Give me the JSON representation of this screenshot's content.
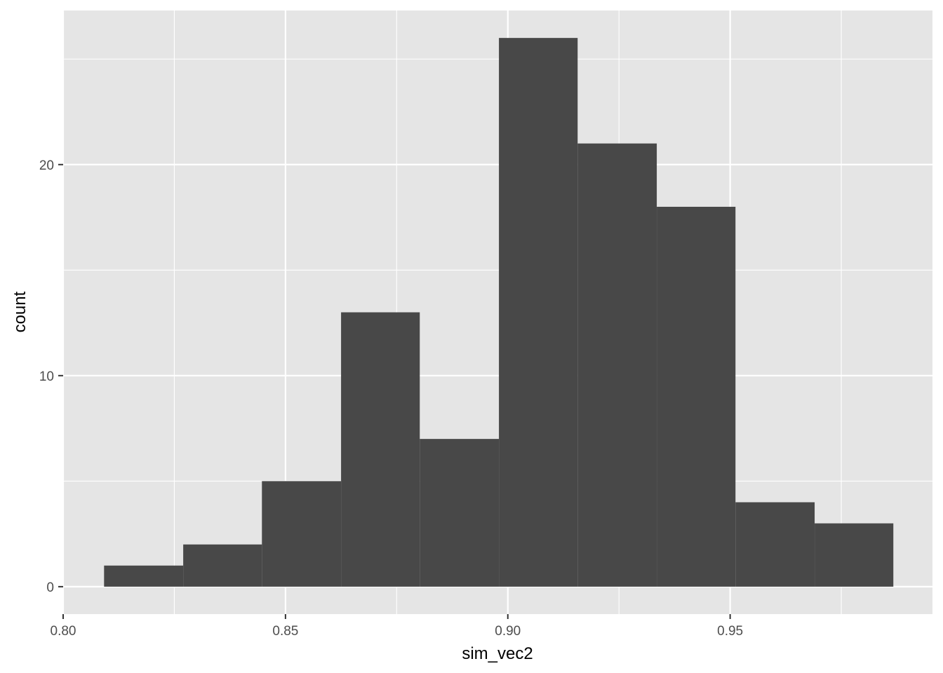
{
  "chart_data": {
    "type": "bar",
    "subtype": "histogram",
    "xlabel": "sim_vec2",
    "ylabel": "count",
    "bins": [
      {
        "start": 0.8092,
        "end": 0.827,
        "count": 1
      },
      {
        "start": 0.827,
        "end": 0.8447,
        "count": 2
      },
      {
        "start": 0.8447,
        "end": 0.8625,
        "count": 5
      },
      {
        "start": 0.8625,
        "end": 0.8802,
        "count": 13
      },
      {
        "start": 0.8802,
        "end": 0.898,
        "count": 7
      },
      {
        "start": 0.898,
        "end": 0.9157,
        "count": 26
      },
      {
        "start": 0.9157,
        "end": 0.9335,
        "count": 21
      },
      {
        "start": 0.9335,
        "end": 0.9512,
        "count": 18
      },
      {
        "start": 0.9512,
        "end": 0.969,
        "count": 4
      },
      {
        "start": 0.969,
        "end": 0.9867,
        "count": 3
      }
    ],
    "xlim": [
      0.8,
      0.9955
    ],
    "ylim": [
      -1.3,
      27.3
    ],
    "x_ticks": [
      0.8,
      0.85,
      0.9,
      0.95
    ],
    "x_tick_labels": [
      "0.80",
      "0.85",
      "0.90",
      "0.95"
    ],
    "x_minor_ticks": [
      0.825,
      0.875,
      0.925,
      0.975
    ],
    "y_ticks": [
      0,
      10,
      20
    ],
    "y_tick_labels": [
      "0",
      "10",
      "20"
    ],
    "y_minor_ticks": [
      5,
      15,
      25
    ],
    "grid": true,
    "legend": "none",
    "colors": {
      "bar": "#484848",
      "panel": "#e5e5e5",
      "grid": "#ffffff",
      "tick_label": "#4d4d4d",
      "tick_mark": "#333333"
    }
  }
}
